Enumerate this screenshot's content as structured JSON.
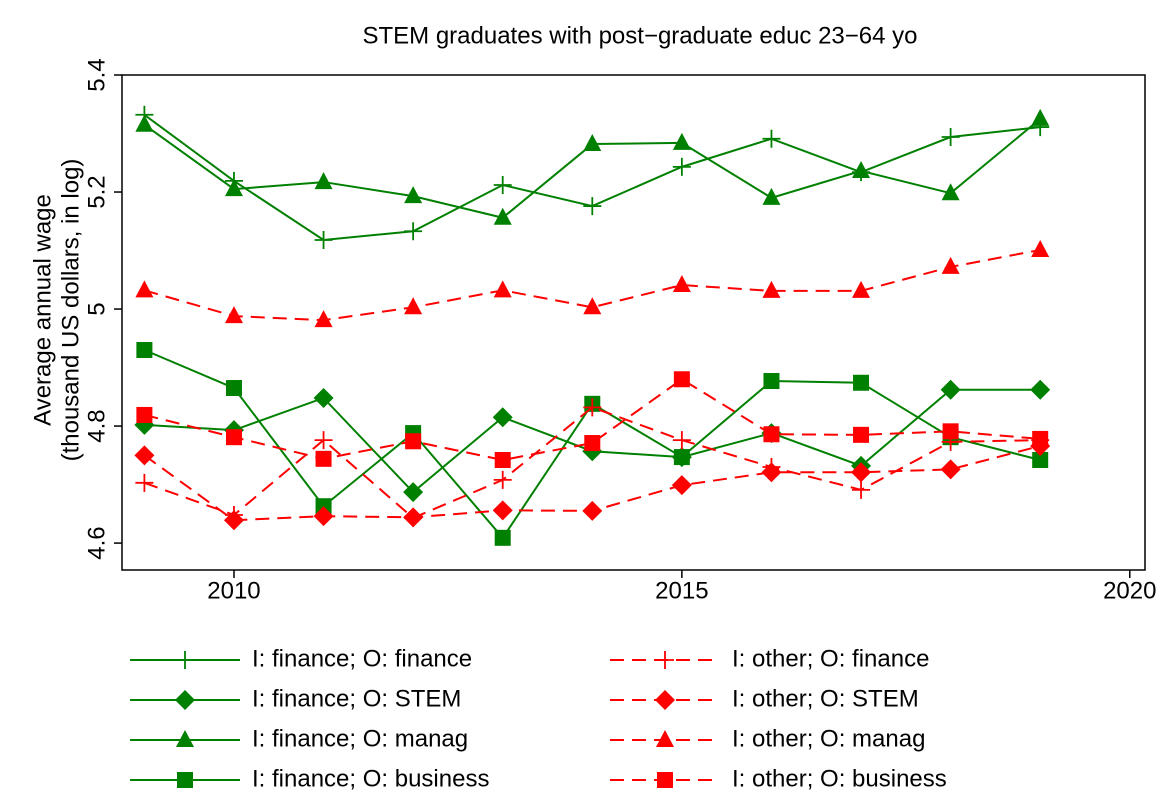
{
  "chart_data": {
    "type": "line",
    "title": "STEM graduates with post−graduate educ 23−64 yo",
    "ylabel": [
      "Average annual wage",
      "(thousand US dollars, in log)"
    ],
    "x": [
      2009,
      2010,
      2011,
      2012,
      2013,
      2014,
      2015,
      2016,
      2017,
      2018,
      2019
    ],
    "xlim": [
      2008.75,
      2020.17
    ],
    "xticks": [
      2010,
      2015,
      2020
    ],
    "ylim": [
      4.554,
      5.4
    ],
    "yticks": [
      4.6,
      4.8,
      5,
      5.2,
      5.4
    ],
    "grid": false,
    "series": [
      {
        "name": "I: finance; O: finance",
        "color": "#008000",
        "marker": "plus",
        "dash": false,
        "values": [
          5.332,
          5.219,
          5.118,
          5.133,
          5.212,
          5.176,
          5.243,
          5.291,
          5.234,
          5.294,
          5.311
        ]
      },
      {
        "name": "I: finance; O: STEM",
        "color": "#008000",
        "marker": "diamond",
        "dash": false,
        "values": [
          4.802,
          4.793,
          4.848,
          4.687,
          4.815,
          4.757,
          4.747,
          4.788,
          4.732,
          4.862,
          4.862
        ]
      },
      {
        "name": "I: finance; O: manag",
        "color": "#008000",
        "marker": "triangle",
        "dash": false,
        "values": [
          5.315,
          5.205,
          5.217,
          5.193,
          5.156,
          5.282,
          5.284,
          5.19,
          5.236,
          5.198,
          5.325
        ]
      },
      {
        "name": "I: finance; O: business",
        "color": "#008000",
        "marker": "square",
        "dash": false,
        "values": [
          4.93,
          4.865,
          4.663,
          4.788,
          4.609,
          4.838,
          4.747,
          4.877,
          4.874,
          4.781,
          4.742
        ]
      },
      {
        "name": "I: other; O: finance",
        "color": "#ff0000",
        "marker": "plus",
        "dash": true,
        "values": [
          4.703,
          4.648,
          4.776,
          4.643,
          4.708,
          4.832,
          4.776,
          4.73,
          4.691,
          4.773,
          4.776
        ]
      },
      {
        "name": "I: other; O: STEM",
        "color": "#ff0000",
        "marker": "diamond",
        "dash": true,
        "values": [
          4.75,
          4.639,
          4.646,
          4.644,
          4.656,
          4.655,
          4.699,
          4.721,
          4.721,
          4.726,
          4.766
        ]
      },
      {
        "name": "I: other; O: manag",
        "color": "#ff0000",
        "marker": "triangle",
        "dash": true,
        "values": [
          5.032,
          4.988,
          4.981,
          5.003,
          5.032,
          5.003,
          5.041,
          5.031,
          5.031,
          5.072,
          5.101
        ]
      },
      {
        "name": "I: other; O: business",
        "color": "#ff0000",
        "marker": "square",
        "dash": true,
        "values": [
          4.819,
          4.781,
          4.744,
          4.774,
          4.742,
          4.771,
          4.88,
          4.786,
          4.785,
          4.791,
          4.778
        ]
      }
    ]
  }
}
